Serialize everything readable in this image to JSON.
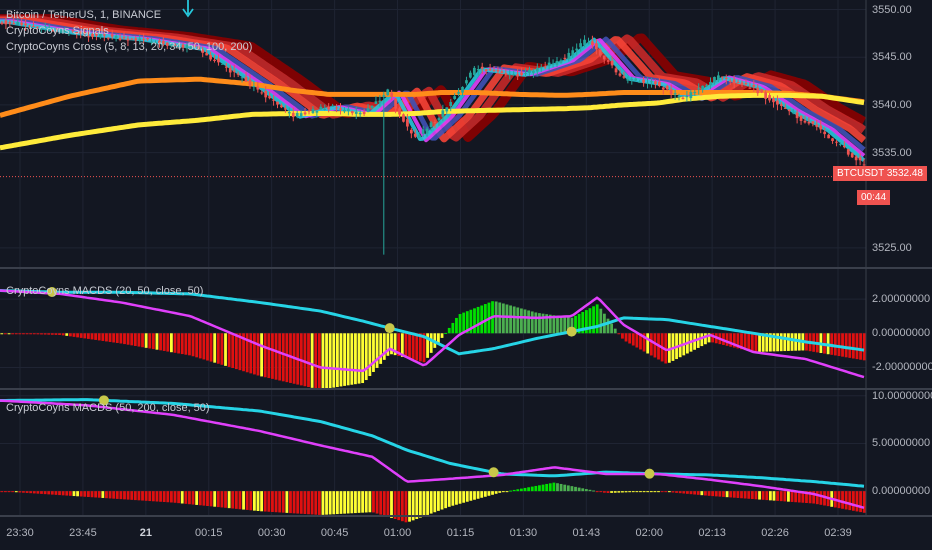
{
  "header": {
    "symbol_title": "Bitcoin / TetherUS, 1, BINANCE",
    "indicator_signals": "CryptoCoyns Signals",
    "indicator_cross": "CryptoCoyns Cross (5, 8, 13, 20, 34, 50, 100, 200)"
  },
  "macd_panes": [
    {
      "title": "CryptoCoyns MACDS (20, 50, close, 50)"
    },
    {
      "title": "CryptoCoyns MACDS (50, 200, close, 50)"
    }
  ],
  "price_tag": {
    "symbol": "BTCUSDT",
    "price": "3532.48",
    "countdown": "00:44"
  },
  "colors": {
    "background": "#131722",
    "macd_line": "#e040fb",
    "signal_line": "#26d4e6",
    "hist_up": "#4caf50",
    "hist_up_bright": "#00e000",
    "hist_down": "#e01010",
    "hist_yellow": "#ffff33",
    "ma200": "#ffeb3b",
    "ma100": "#ff8c1a",
    "cross_dot": "#c8c84a",
    "tag": "#ef5350"
  },
  "chart_data": [
    {
      "type": "line",
      "name": "price",
      "x_ticks": [
        "23:30",
        "23:45",
        "21",
        "00:15",
        "00:30",
        "00:45",
        "01:00",
        "01:15",
        "01:30",
        "01:43",
        "02:00",
        "02:13",
        "02:26",
        "02:39"
      ],
      "y_ticks": [
        "3550.00",
        "3545.00",
        "3540.00",
        "3535.00",
        "3525.00"
      ],
      "ylim": [
        3523,
        3551
      ],
      "x_samples": [
        0,
        0.08,
        0.16,
        0.23,
        0.29,
        0.34,
        0.38,
        0.42,
        0.45,
        0.48,
        0.51,
        0.55,
        0.6,
        0.65,
        0.68,
        0.72,
        0.76,
        0.79,
        0.83,
        0.87,
        0.91,
        0.95,
        1.0
      ],
      "close": [
        3548.8,
        3547.6,
        3546.9,
        3545.9,
        3542.2,
        3538.8,
        3539.8,
        3539.0,
        3541.4,
        3536.3,
        3538.8,
        3543.8,
        3543.2,
        3544.7,
        3546.9,
        3542.8,
        3542.2,
        3540.6,
        3542.9,
        3541.9,
        3539.4,
        3537.4,
        3533.6
      ],
      "ma_cross": {
        "ma100": [
          3538.9,
          3540.9,
          3542.5,
          3542.7,
          3542.2,
          3541.5,
          3541.1,
          3541.1,
          3541.1,
          3541.1,
          3541.3,
          3541.3,
          3541.1,
          3541.0,
          3541.1,
          3541.3,
          3541.3,
          3541.3,
          3541.3,
          3541.3,
          3541.2,
          3540.9,
          3540.3
        ],
        "ma200": [
          3535.5,
          3536.8,
          3537.9,
          3538.4,
          3539.0,
          3539.1,
          3539.1,
          3539.0,
          3539.0,
          3539.1,
          3539.3,
          3539.4,
          3539.5,
          3539.6,
          3539.7,
          3540.0,
          3540.2,
          3540.6,
          3540.9,
          3541.0,
          3541.0,
          3540.9,
          3540.2
        ]
      },
      "last_price": 3532.48
    },
    {
      "type": "bar",
      "name": "macds-20-50",
      "y_ticks": [
        "2.00000000",
        "0.00000000",
        "-2.00000000"
      ],
      "ylim": [
        -3.2,
        3.7
      ],
      "x_samples": [
        0,
        0.07,
        0.14,
        0.22,
        0.3,
        0.37,
        0.42,
        0.45,
        0.49,
        0.53,
        0.57,
        0.62,
        0.66,
        0.69,
        0.72,
        0.77,
        0.82,
        0.87,
        0.93,
        1.0
      ],
      "macd": [
        2.5,
        2.3,
        1.8,
        1.0,
        -0.7,
        -2.0,
        -2.2,
        -0.9,
        -1.9,
        -0.1,
        1.0,
        0.9,
        1.0,
        2.1,
        0.5,
        -1.0,
        -0.1,
        -1.1,
        -1.5,
        -2.6
      ],
      "signal": [
        2.5,
        2.4,
        2.4,
        2.3,
        1.8,
        1.3,
        0.7,
        0.3,
        -0.2,
        -1.2,
        -0.9,
        -0.3,
        0.1,
        0.4,
        0.9,
        0.8,
        0.4,
        0.0,
        -0.5,
        -1.0
      ],
      "cross_points": [
        0.06,
        0.45,
        0.66
      ]
    },
    {
      "type": "bar",
      "name": "macds-50-200",
      "y_ticks": [
        "10.00000000",
        "5.00000000",
        "0.00000000"
      ],
      "ylim": [
        -2.5,
        10.5
      ],
      "x_samples": [
        0,
        0.1,
        0.2,
        0.3,
        0.37,
        0.43,
        0.47,
        0.52,
        0.58,
        0.64,
        0.7,
        0.76,
        0.82,
        0.88,
        0.94,
        1.0
      ],
      "macd": [
        9.5,
        9.0,
        8.0,
        6.3,
        4.8,
        3.6,
        1.0,
        1.3,
        1.7,
        2.5,
        1.8,
        1.8,
        1.2,
        0.5,
        -0.3,
        -1.8
      ],
      "signal": [
        9.5,
        9.6,
        9.2,
        8.4,
        7.3,
        5.8,
        4.3,
        2.9,
        1.8,
        1.6,
        2.0,
        1.8,
        1.7,
        1.4,
        1.0,
        0.5
      ],
      "cross_points": [
        0.12,
        0.57,
        0.75
      ]
    }
  ]
}
